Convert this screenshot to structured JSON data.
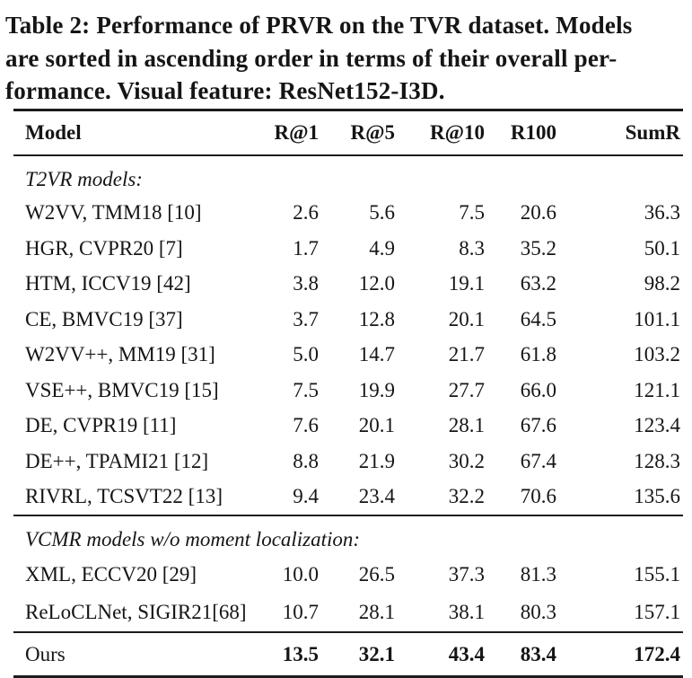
{
  "caption": {
    "lines": [
      "Table 2: Performance of PRVR on the TVR dataset. Models",
      "are sorted in ascending order in terms of their overall per-",
      "formance. Visual feature: ResNet152-I3D."
    ]
  },
  "table": {
    "columns": [
      "Model",
      "R@1",
      "R@5",
      "R@10",
      "R100",
      "SumR"
    ],
    "sections": [
      {
        "label": "T2VR models:",
        "rows": [
          {
            "model": "W2VV, TMM18 [10]",
            "values": [
              "2.6",
              "5.6",
              "7.5",
              "20.6",
              "36.3"
            ]
          },
          {
            "model": "HGR, CVPR20 [7]",
            "values": [
              "1.7",
              "4.9",
              "8.3",
              "35.2",
              "50.1"
            ]
          },
          {
            "model": "HTM, ICCV19 [42]",
            "values": [
              "3.8",
              "12.0",
              "19.1",
              "63.2",
              "98.2"
            ]
          },
          {
            "model": "CE, BMVC19 [37]",
            "values": [
              "3.7",
              "12.8",
              "20.1",
              "64.5",
              "101.1"
            ]
          },
          {
            "model": "W2VV++, MM19 [31]",
            "values": [
              "5.0",
              "14.7",
              "21.7",
              "61.8",
              "103.2"
            ]
          },
          {
            "model": "VSE++, BMVC19 [15]",
            "values": [
              "7.5",
              "19.9",
              "27.7",
              "66.0",
              "121.1"
            ]
          },
          {
            "model": "DE, CVPR19 [11]",
            "values": [
              "7.6",
              "20.1",
              "28.1",
              "67.6",
              "123.4"
            ]
          },
          {
            "model": "DE++, TPAMI21 [12]",
            "values": [
              "8.8",
              "21.9",
              "30.2",
              "67.4",
              "128.3"
            ]
          },
          {
            "model": "RIVRL, TCSVT22 [13]",
            "values": [
              "9.4",
              "23.4",
              "32.2",
              "70.6",
              "135.6"
            ]
          }
        ]
      },
      {
        "label": "VCMR models w/o moment localization:",
        "rows": [
          {
            "model": "XML, ECCV20 [29]",
            "values": [
              "10.0",
              "26.5",
              "37.3",
              "81.3",
              "155.1"
            ]
          },
          {
            "model": "ReLoCLNet, SIGIR21[68]",
            "values": [
              "10.7",
              "28.1",
              "38.1",
              "80.3",
              "157.1"
            ]
          }
        ]
      }
    ],
    "final_row": {
      "model": "Ours",
      "values": [
        "13.5",
        "32.1",
        "43.4",
        "83.4",
        "172.4"
      ],
      "bold_values": true
    }
  },
  "colors": {
    "text": "#151515",
    "rule": "#1c1c1c",
    "background": "#ffffff"
  }
}
